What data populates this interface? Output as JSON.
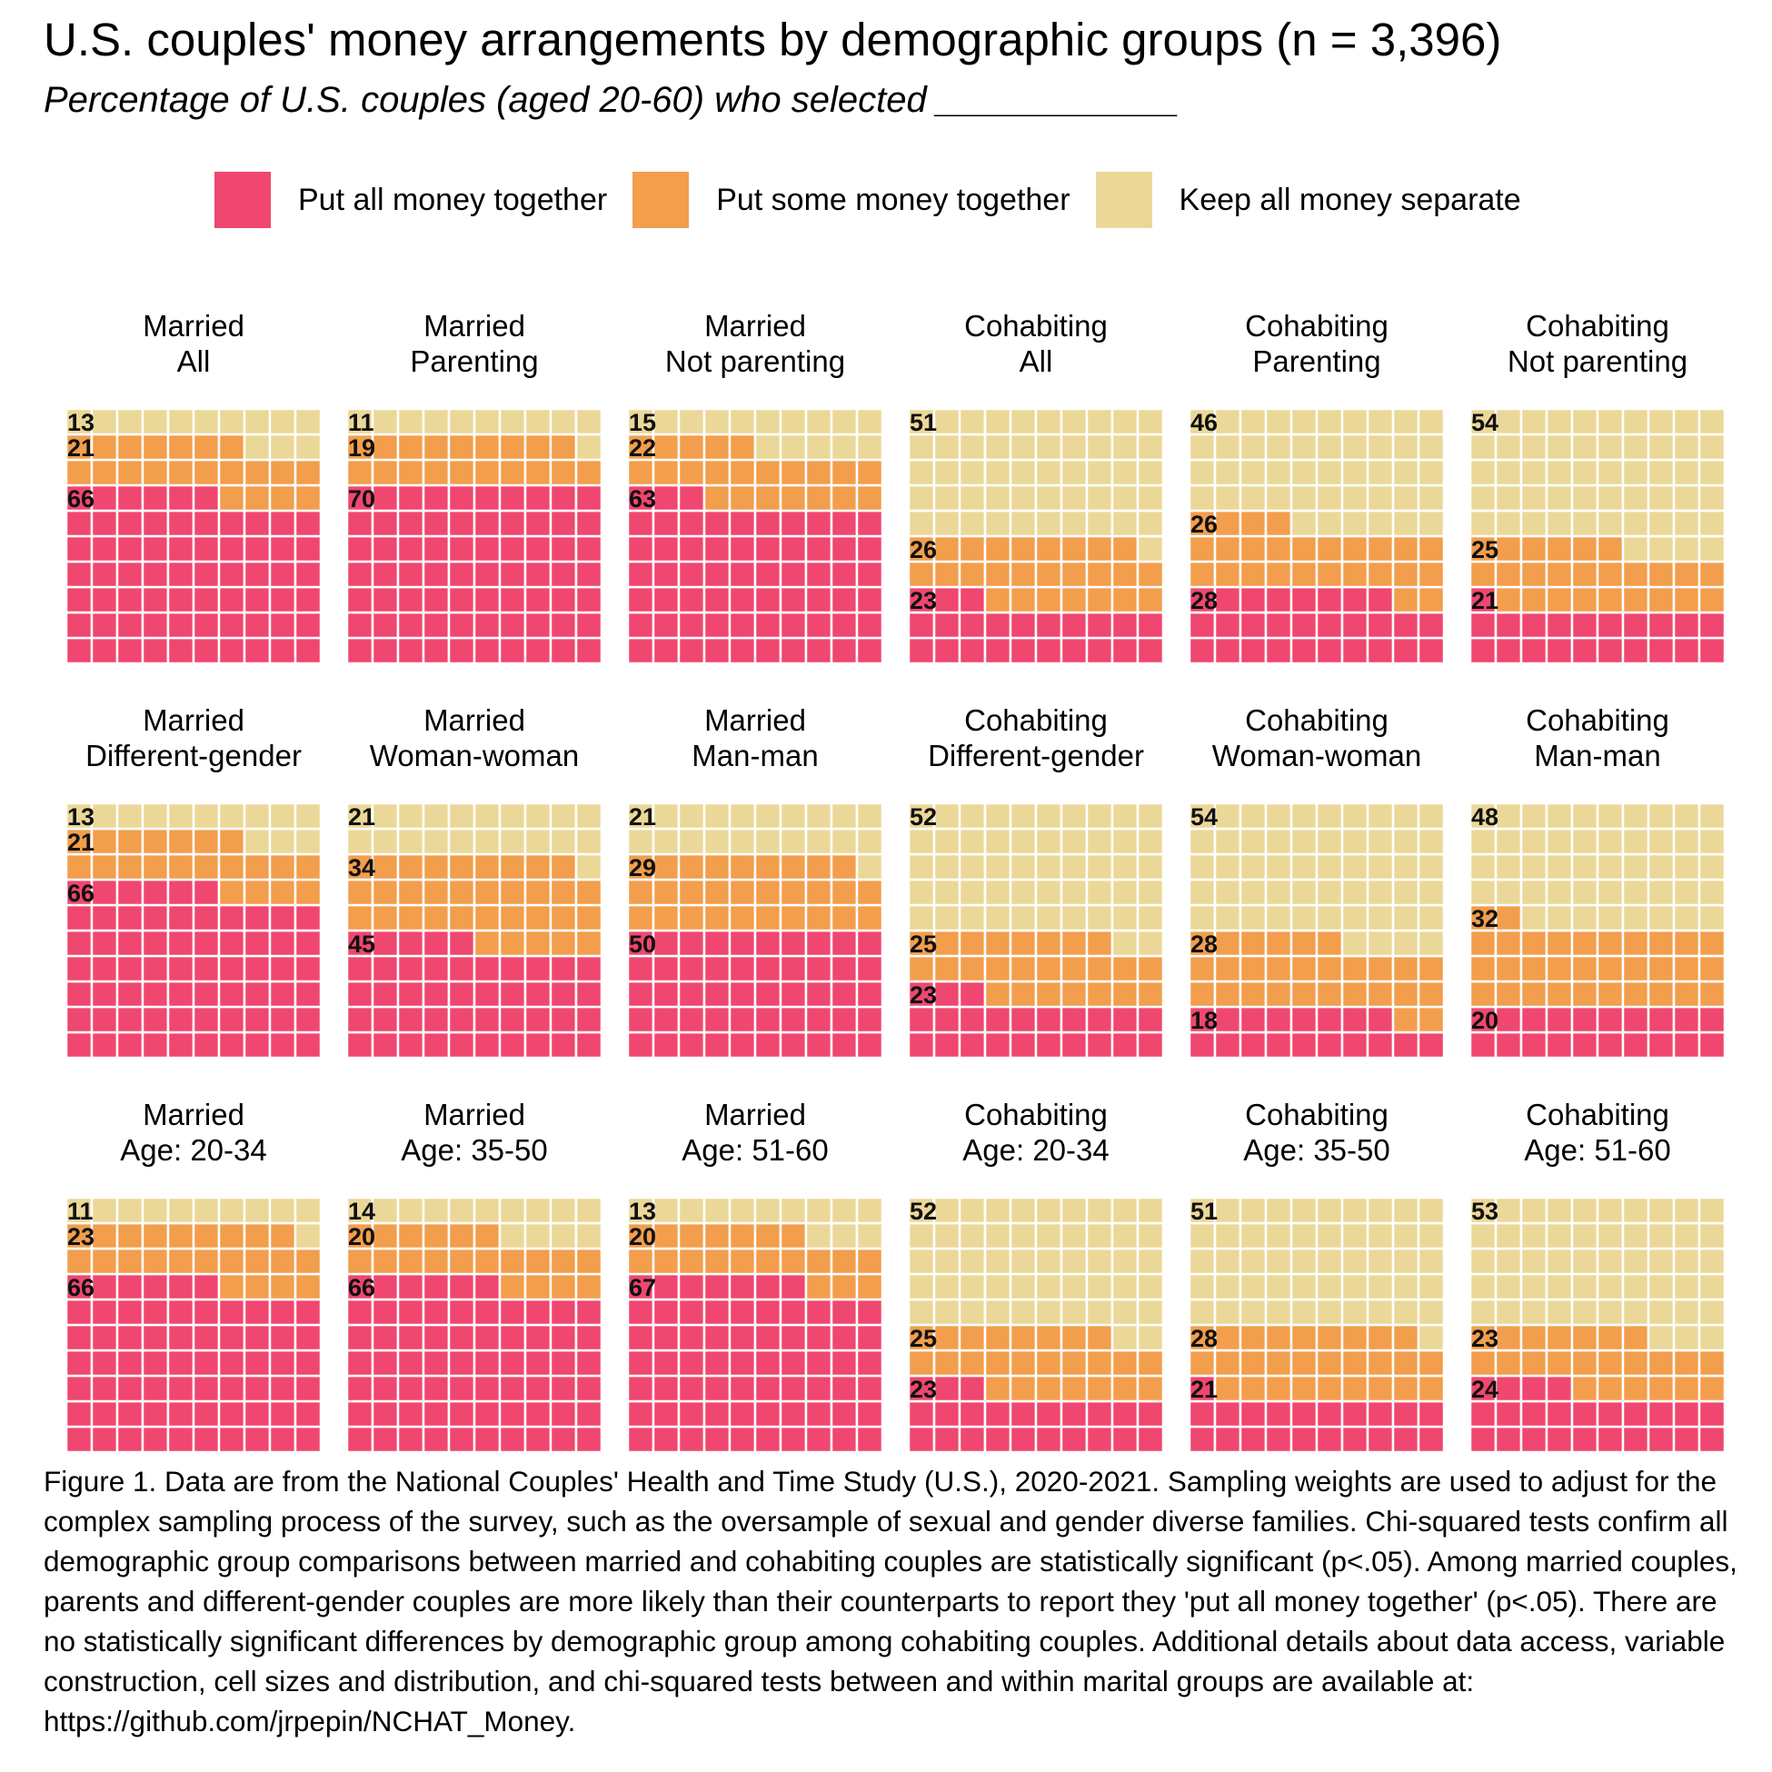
{
  "title": "U.S. couples' money arrangements by demographic groups (n = 3,396)",
  "subtitle": "Percentage of U.S. couples (aged 20-60) who selected ____________",
  "legend": [
    {
      "label": "Put all money together",
      "color": "#EF476F"
    },
    {
      "label": "Put some money together",
      "color": "#F29E4C"
    },
    {
      "label": "Keep all money separate",
      "color": "#EBD898"
    }
  ],
  "caption": "Figure 1. Data are from the National Couples' Health and Time Study (U.S.), 2020-2021. Sampling weights are used to adjust for the complex sampling process of the survey, such as the oversample of sexual and gender diverse families. Chi-squared tests confirm all demographic group comparisons between married and cohabiting couples are statistically significant (p<.05). Among married couples, parents and different-gender couples are more likely than their counterparts to report they 'put all money together' (p<.05). There are no statistically significant differences by demographic group among cohabiting couples. Additional details about data access, variable construction, cell sizes and distribution, and chi-squared tests between and within marital groups are available at: https://github.com/jrpepin/NCHAT_Money.",
  "chart_data": {
    "type": "waffle",
    "grid": "10x10",
    "categories": [
      "Put all money together",
      "Put some money together",
      "Keep all money separate"
    ],
    "panels": [
      {
        "line1": "Married",
        "line2": "All",
        "values": [
          66,
          21,
          13
        ]
      },
      {
        "line1": "Married",
        "line2": "Parenting",
        "values": [
          70,
          19,
          11
        ]
      },
      {
        "line1": "Married",
        "line2": "Not parenting",
        "values": [
          63,
          22,
          15
        ]
      },
      {
        "line1": "Cohabiting",
        "line2": "All",
        "values": [
          23,
          26,
          51
        ]
      },
      {
        "line1": "Cohabiting",
        "line2": "Parenting",
        "values": [
          28,
          26,
          46
        ]
      },
      {
        "line1": "Cohabiting",
        "line2": "Not parenting",
        "values": [
          21,
          25,
          54
        ]
      },
      {
        "line1": "Married",
        "line2": "Different-gender",
        "values": [
          66,
          21,
          13
        ]
      },
      {
        "line1": "Married",
        "line2": "Woman-woman",
        "values": [
          45,
          34,
          21
        ]
      },
      {
        "line1": "Married",
        "line2": "Man-man",
        "values": [
          50,
          29,
          21
        ]
      },
      {
        "line1": "Cohabiting",
        "line2": "Different-gender",
        "values": [
          23,
          25,
          52
        ]
      },
      {
        "line1": "Cohabiting",
        "line2": "Woman-woman",
        "values": [
          18,
          28,
          54
        ]
      },
      {
        "line1": "Cohabiting",
        "line2": "Man-man",
        "values": [
          20,
          32,
          48
        ]
      },
      {
        "line1": "Married",
        "line2": "Age: 20-34",
        "values": [
          66,
          23,
          11
        ]
      },
      {
        "line1": "Married",
        "line2": "Age: 35-50",
        "values": [
          66,
          20,
          14
        ]
      },
      {
        "line1": "Married",
        "line2": "Age: 51-60",
        "values": [
          67,
          20,
          13
        ]
      },
      {
        "line1": "Cohabiting",
        "line2": "Age: 20-34",
        "values": [
          23,
          25,
          52
        ]
      },
      {
        "line1": "Cohabiting",
        "line2": "Age: 35-50",
        "values": [
          21,
          28,
          51
        ]
      },
      {
        "line1": "Cohabiting",
        "line2": "Age: 51-60",
        "values": [
          24,
          23,
          53
        ]
      }
    ]
  }
}
